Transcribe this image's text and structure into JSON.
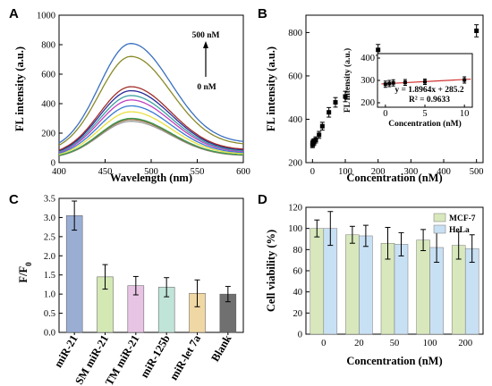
{
  "chart_data": [
    {
      "panel": "A",
      "type": "line",
      "xlabel": "Wavelength (nm)",
      "ylabel": "FL intensity (a.u.)",
      "xlim": [
        400,
        600
      ],
      "ylim": [
        0,
        1000
      ],
      "xticks": [
        400,
        450,
        500,
        550,
        600
      ],
      "yticks": [
        0,
        200,
        400,
        600,
        800,
        1000
      ],
      "peak_x": 478,
      "baseline_at_400": 0.1,
      "baseline_at_600": 0.16,
      "annotation_top": "500 nM",
      "annotation_bottom": "0 nM",
      "series": [
        {
          "peak": 280,
          "color": "#9a9a9a"
        },
        {
          "peak": 292,
          "color": "#8a6a3a"
        },
        {
          "peak": 300,
          "color": "#3a9a50"
        },
        {
          "peak": 345,
          "color": "#e8e040"
        },
        {
          "peak": 385,
          "color": "#3a7ad0"
        },
        {
          "peak": 425,
          "color": "#c040c0"
        },
        {
          "peak": 455,
          "color": "#3aa0a0"
        },
        {
          "peak": 488,
          "color": "#2a2a9a"
        },
        {
          "peak": 515,
          "color": "#a0302a"
        },
        {
          "peak": 720,
          "color": "#8a8a2a"
        },
        {
          "peak": 808,
          "color": "#3a70c0"
        }
      ]
    },
    {
      "panel": "B",
      "type": "scatter",
      "xlabel": "Concentration (nM)",
      "ylabel": "FL intensity (a.u.)",
      "xlim": [
        -20,
        520
      ],
      "ylim": [
        200,
        880
      ],
      "xticks": [
        0,
        100,
        200,
        300,
        400,
        500
      ],
      "yticks": [
        200,
        400,
        600,
        800
      ],
      "points": [
        {
          "x": 0,
          "y": 283,
          "err": 14
        },
        {
          "x": 1,
          "y": 288,
          "err": 14
        },
        {
          "x": 2,
          "y": 293,
          "err": 14
        },
        {
          "x": 5,
          "y": 296,
          "err": 14
        },
        {
          "x": 10,
          "y": 305,
          "err": 14
        },
        {
          "x": 20,
          "y": 328,
          "err": 16
        },
        {
          "x": 30,
          "y": 368,
          "err": 18
        },
        {
          "x": 50,
          "y": 432,
          "err": 22
        },
        {
          "x": 70,
          "y": 478,
          "err": 22
        },
        {
          "x": 100,
          "y": 505,
          "err": 24
        },
        {
          "x": 200,
          "y": 720,
          "err": 25
        },
        {
          "x": 500,
          "y": 808,
          "err": 28
        }
      ],
      "inset": {
        "type": "scatter",
        "xlabel": "Concentration (nM)",
        "ylabel": "FL intensity (a.u.)",
        "xlim": [
          -1,
          11
        ],
        "ylim": [
          180,
          420
        ],
        "xticks": [
          0,
          5,
          10
        ],
        "yticks": [
          200,
          300,
          400
        ],
        "points": [
          {
            "x": 0,
            "y": 283,
            "err": 14
          },
          {
            "x": 0.5,
            "y": 286,
            "err": 14
          },
          {
            "x": 1,
            "y": 289,
            "err": 14
          },
          {
            "x": 2.5,
            "y": 291,
            "err": 13
          },
          {
            "x": 5,
            "y": 294,
            "err": 12
          },
          {
            "x": 10,
            "y": 302,
            "err": 14
          }
        ],
        "fit_slope": 1.8964,
        "fit_intercept": 285.2,
        "fit_color": "#d03030",
        "equation": "y = 1.8964x + 285.2",
        "r2": "R² = 0.9633"
      }
    },
    {
      "panel": "C",
      "type": "bar",
      "ylabel_main": "F/F",
      "ylabel_sub": "0",
      "ylim": [
        0,
        3.5
      ],
      "yticks": [
        "0.0",
        "0.5",
        "1.0",
        "1.5",
        "2.0",
        "2.5",
        "3.0",
        "3.5"
      ],
      "categories": [
        "miR-21",
        "SM miR-21",
        "TM miR-21",
        "miR-125b",
        "miR-let 7a",
        "Blank"
      ],
      "values": [
        3.05,
        1.45,
        1.22,
        1.18,
        1.02,
        1.0
      ],
      "errors": [
        0.38,
        0.32,
        0.24,
        0.25,
        0.35,
        0.2
      ],
      "colors": [
        "#9aaed4",
        "#d4e8b4",
        "#e8c4e4",
        "#c0e4d8",
        "#f0d8a4",
        "#707070"
      ]
    },
    {
      "panel": "D",
      "type": "bar",
      "xlabel": "Concentration (nM)",
      "ylabel": "Cell viability (%)",
      "ylim": [
        0,
        120
      ],
      "yticks": [
        0,
        20,
        40,
        60,
        80,
        100,
        120
      ],
      "categories": [
        "0",
        "20",
        "50",
        "100",
        "200"
      ],
      "legend_position": "top-right",
      "series": [
        {
          "name": "MCF-7",
          "color": "#d8e8bc",
          "values": [
            100,
            94,
            86,
            89,
            84
          ],
          "errors": [
            8,
            8,
            15,
            10,
            13
          ]
        },
        {
          "name": "HeLa",
          "color": "#c8e0f4",
          "values": [
            100,
            93,
            85,
            82,
            81
          ],
          "errors": [
            16,
            10,
            11,
            14,
            13
          ]
        }
      ]
    }
  ]
}
